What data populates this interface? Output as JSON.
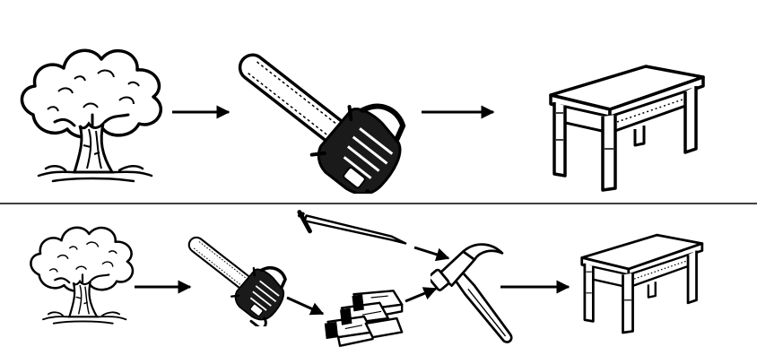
{
  "colors": {
    "background": "#ffffff",
    "ink": "#000000",
    "paper": "#ffffff"
  },
  "diagram": {
    "top_row": {
      "steps": [
        {
          "icon": "tree-icon"
        },
        {
          "icon": "chainsaw-icon"
        },
        {
          "icon": "table-icon"
        }
      ]
    },
    "bottom_row": {
      "steps": [
        {
          "icon": "tree-icon"
        },
        {
          "icon": "chainsaw-icon"
        },
        {
          "icon": "nail-icon"
        },
        {
          "icon": "lumber-pile-icon"
        },
        {
          "icon": "hammer-icon"
        },
        {
          "icon": "table-icon"
        }
      ]
    }
  }
}
